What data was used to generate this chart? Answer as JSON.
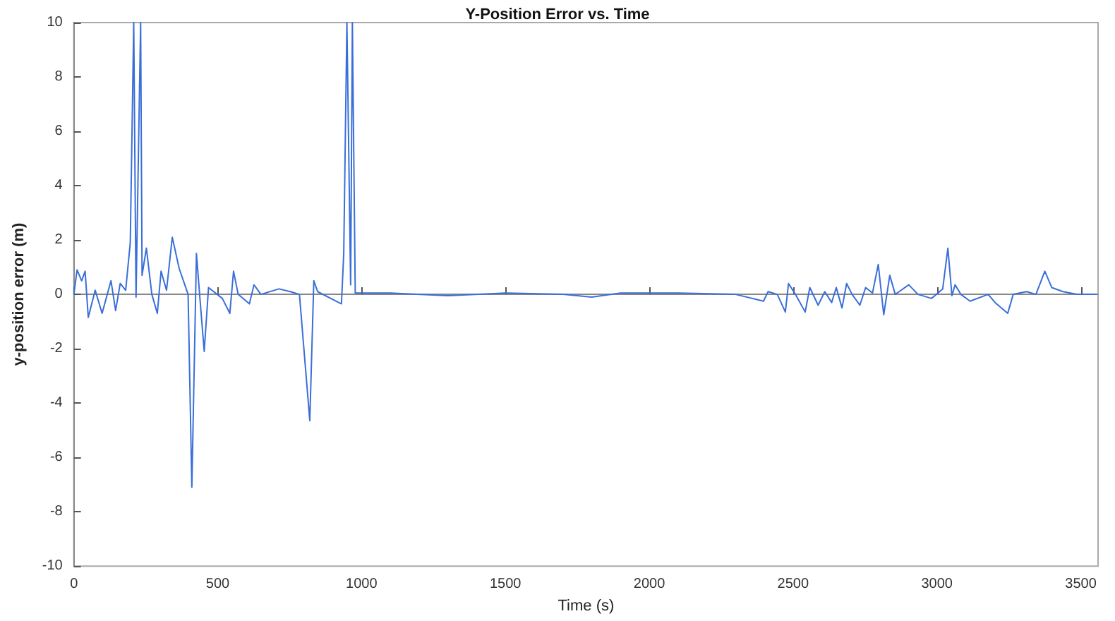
{
  "chart_data": {
    "type": "line",
    "title": "Y-Position Error vs. Time",
    "xlabel": "Time (s)",
    "ylabel": "y-position error (m)",
    "x": [
      0,
      11,
      27,
      39,
      50,
      74,
      98,
      129,
      145,
      161,
      180,
      196,
      208,
      216,
      232,
      237,
      252,
      271,
      290,
      303,
      322,
      342,
      366,
      397,
      410,
      426,
      437,
      453,
      468,
      516,
      542,
      555,
      571,
      610,
      626,
      650,
      713,
      752,
      784,
      820,
      834,
      847,
      930,
      938,
      949,
      962,
      968,
      978,
      1100,
      1300,
      1500,
      1700,
      1800,
      1900,
      2100,
      2300,
      2397,
      2413,
      2445,
      2473,
      2484,
      2508,
      2542,
      2558,
      2587,
      2610,
      2634,
      2650,
      2670,
      2686,
      2705,
      2732,
      2752,
      2776,
      2796,
      2815,
      2836,
      2855,
      2902,
      2934,
      2981,
      3020,
      3038,
      3052,
      3063,
      3083,
      3115,
      3178,
      3202,
      3246,
      3265,
      3312,
      3344,
      3375,
      3399,
      3438,
      3486,
      3556
    ],
    "series": [
      {
        "color": "#3a6fd8",
        "values": [
          0,
          0.9,
          0.5,
          0.85,
          -0.85,
          0.15,
          -0.7,
          0.5,
          -0.6,
          0.4,
          0.15,
          1.9,
          10,
          -0.1,
          10,
          0.7,
          1.7,
          0,
          -0.7,
          0.85,
          0.15,
          2.1,
          0.95,
          0,
          -7.1,
          1.5,
          0,
          -2.1,
          0.25,
          -0.15,
          -0.7,
          0.85,
          0,
          -0.35,
          0.35,
          0,
          0.2,
          0.1,
          0,
          -4.65,
          0.5,
          0.1,
          -0.35,
          1.5,
          10,
          0.35,
          10,
          0.05,
          0.05,
          -0.05,
          0.05,
          0,
          -0.1,
          0.05,
          0.05,
          0,
          -0.25,
          0.1,
          0,
          -0.65,
          0.4,
          0,
          -0.65,
          0.25,
          -0.4,
          0.1,
          -0.3,
          0.25,
          -0.5,
          0.4,
          0,
          -0.4,
          0.25,
          0.05,
          1.1,
          -0.75,
          0.7,
          0,
          0.35,
          0,
          -0.15,
          0.2,
          1.7,
          -0.05,
          0.35,
          0,
          -0.25,
          0,
          -0.3,
          -0.7,
          0,
          0.1,
          0,
          0.85,
          0.25,
          0.1,
          0,
          0
        ]
      }
    ],
    "xlim": [
      0,
      3560
    ],
    "ylim": [
      -10,
      10
    ],
    "xticks": [
      0,
      500,
      1000,
      1500,
      2000,
      2500,
      3000,
      3500
    ],
    "yticks": [
      -10,
      -8,
      -6,
      -4,
      -2,
      0,
      2,
      4,
      6,
      8,
      10
    ]
  }
}
